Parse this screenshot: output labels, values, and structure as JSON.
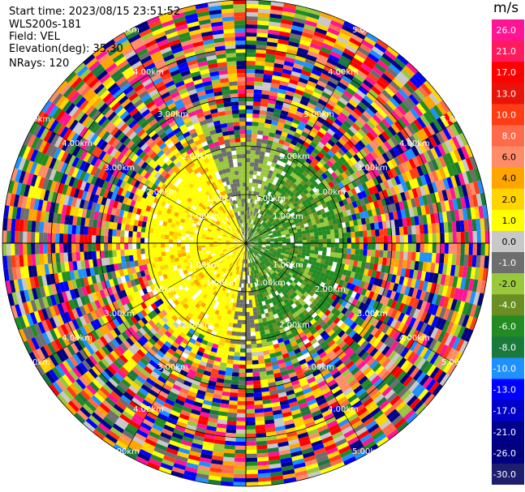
{
  "header": {
    "start_time": "Start time: 2023/08/15 23:51:52",
    "instrument": "WLS200s-181",
    "field": "Field: VEL",
    "elevation": "Elevation(deg): 35.30",
    "nrays": "NRays: 120"
  },
  "colorbar": {
    "unit": "m/s",
    "ticks": [
      "26.0",
      "21.0",
      "17.0",
      "13.0",
      "10.0",
      "8.0",
      "6.0",
      "4.0",
      "2.0",
      "1.0",
      "0.0",
      "-1.0",
      "-2.0",
      "-4.0",
      "-6.0",
      "-8.0",
      "-10.0",
      "-13.0",
      "-17.0",
      "-21.0",
      "-26.0",
      "-30.0"
    ],
    "colors": [
      "#ff1493",
      "#ff1a5e",
      "#ff0000",
      "#e8140a",
      "#ff3c14",
      "#ff6a4a",
      "#ff8c69",
      "#ffa500",
      "#ffd400",
      "#ffff00",
      "#c8c8c8",
      "#6e6e6e",
      "#9ac83c",
      "#6b8e23",
      "#228b22",
      "#1a7a3c",
      "#1e90ff",
      "#0000ff",
      "#0000c8",
      "#00008b",
      "#000080",
      "#1e1e6e"
    ]
  },
  "chart_data": {
    "type": "ppi",
    "title": "",
    "field": "VEL",
    "units": "m/s",
    "elevation_deg": 35.3,
    "n_rays": 120,
    "range_ring_labels": [
      "1.00km",
      "2.00km",
      "3.00km",
      "4.00km",
      "5.00km"
    ],
    "range_rings_km": [
      1,
      2,
      3,
      4,
      5
    ],
    "max_range_km": 5,
    "color_levels": [
      -30.0,
      -26.0,
      -21.0,
      -17.0,
      -13.0,
      -10.0,
      -8.0,
      -6.0,
      -4.0,
      -2.0,
      -1.0,
      0.0,
      1.0,
      2.0,
      4.0,
      6.0,
      8.0,
      10.0,
      13.0,
      17.0,
      21.0,
      26.0
    ],
    "sectors": [
      {
        "region": "west near range",
        "dominant_velocity_ms": 2.0
      },
      {
        "region": "east near range",
        "dominant_velocity_ms": -4.0
      },
      {
        "region": "north-east near range",
        "dominant_velocity_ms": -2.0
      },
      {
        "region": "outer range",
        "dominant_velocity_ms": "noise"
      }
    ]
  }
}
